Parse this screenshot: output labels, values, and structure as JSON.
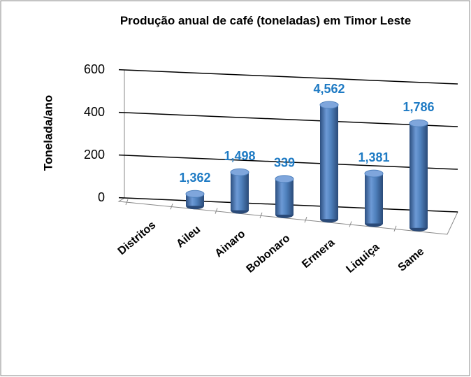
{
  "chart_data": {
    "type": "cylinder3d",
    "title": "Produção anual de café (toneladas) em Timor Leste",
    "y_label": "Tonelada/ano",
    "categories": [
      "Distritos",
      "Aileu",
      "Ainaro",
      "Bobonaro",
      "Ermera",
      "Liquiça",
      "Same"
    ],
    "values": [
      null,
      50,
      160,
      150,
      480,
      210,
      440
    ],
    "annotations": [
      "1,362",
      "1,498",
      "339",
      "4,562",
      "1,381",
      "1,786"
    ],
    "color": "#4f81bd",
    "label_color": "#1f7bc4",
    "ylim": [
      0,
      600
    ],
    "yticks": [
      0,
      200,
      400,
      600
    ],
    "grid": true
  }
}
